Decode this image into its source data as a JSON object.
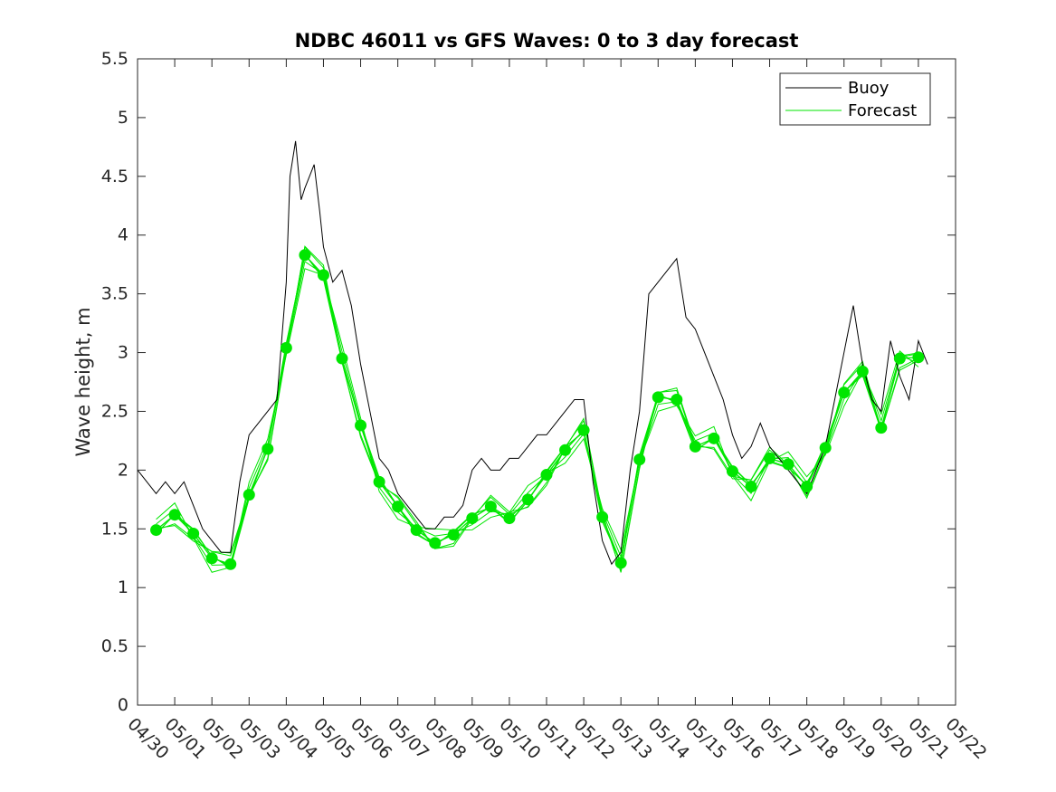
{
  "chart_data": {
    "type": "line",
    "title": "NDBC 46011 vs GFS Waves: 0 to 3 day forecast",
    "xlabel": "",
    "ylabel": "Wave height, m",
    "ylim": [
      0,
      5.5
    ],
    "xlim": [
      0,
      22
    ],
    "grid": false,
    "legend_position": "top-right",
    "y_ticks": [
      "0",
      "0.5",
      "1",
      "1.5",
      "2",
      "2.5",
      "3",
      "3.5",
      "4",
      "4.5",
      "5",
      "5.5"
    ],
    "x_ticks": [
      "04/30",
      "05/01",
      "05/02",
      "05/03",
      "05/04",
      "05/05",
      "05/06",
      "05/07",
      "05/08",
      "05/09",
      "05/10",
      "05/11",
      "05/12",
      "05/13",
      "05/14",
      "05/15",
      "05/16",
      "05/17",
      "05/18",
      "05/19",
      "05/20",
      "05/21",
      "05/22"
    ],
    "legend": [
      "Buoy",
      "Forecast"
    ],
    "colors": {
      "buoy": "#000000",
      "forecast": "#00e600"
    },
    "series": [
      {
        "name": "Buoy",
        "x": [
          0,
          0.25,
          0.5,
          0.75,
          1.0,
          1.25,
          1.5,
          1.75,
          2.0,
          2.25,
          2.5,
          2.75,
          3.0,
          3.25,
          3.5,
          3.75,
          4.0,
          4.1,
          4.25,
          4.4,
          4.5,
          4.75,
          4.9,
          5.0,
          5.25,
          5.5,
          5.75,
          6.0,
          6.25,
          6.5,
          6.75,
          7.0,
          7.25,
          7.5,
          7.75,
          8.0,
          8.25,
          8.5,
          8.75,
          9.0,
          9.25,
          9.5,
          9.75,
          10.0,
          10.25,
          10.5,
          10.75,
          11.0,
          11.25,
          11.5,
          11.75,
          12.0,
          12.25,
          12.5,
          12.75,
          13.0,
          13.25,
          13.5,
          13.75,
          14.0,
          14.25,
          14.5,
          14.75,
          15.0,
          15.25,
          15.5,
          15.75,
          16.0,
          16.25,
          16.5,
          16.75,
          17.0,
          17.25,
          17.5,
          17.75,
          18.0,
          18.25,
          18.5,
          18.75,
          19.0,
          19.25,
          19.5,
          19.75,
          20.0,
          20.25,
          20.5,
          20.75,
          21.0,
          21.25
        ],
        "values": [
          2.0,
          1.9,
          1.8,
          1.9,
          1.8,
          1.9,
          1.7,
          1.5,
          1.4,
          1.3,
          1.3,
          1.9,
          2.3,
          2.4,
          2.5,
          2.6,
          3.6,
          4.5,
          4.8,
          4.3,
          4.4,
          4.6,
          4.2,
          3.9,
          3.6,
          3.7,
          3.4,
          2.9,
          2.5,
          2.1,
          2.0,
          1.8,
          1.7,
          1.6,
          1.5,
          1.5,
          1.6,
          1.6,
          1.7,
          2.0,
          2.1,
          2.0,
          2.0,
          2.1,
          2.1,
          2.2,
          2.3,
          2.3,
          2.4,
          2.5,
          2.6,
          2.6,
          1.9,
          1.4,
          1.2,
          1.3,
          2.0,
          2.5,
          3.5,
          3.6,
          3.7,
          3.8,
          3.3,
          3.2,
          3.0,
          2.8,
          2.6,
          2.3,
          2.1,
          2.2,
          2.4,
          2.2,
          2.1,
          2.0,
          1.9,
          1.8,
          2.0,
          2.2,
          2.6,
          3.0,
          3.4,
          2.9,
          2.6,
          2.5,
          3.1,
          2.8,
          2.6,
          3.1,
          2.9
        ]
      },
      {
        "name": "Forecast",
        "x": [
          0.5,
          1.0,
          1.5,
          2.0,
          2.5,
          3.0,
          3.5,
          4.0,
          4.5,
          5.0,
          5.5,
          6.0,
          6.5,
          7.0,
          7.5,
          8.0,
          8.5,
          9.0,
          9.5,
          10.0,
          10.5,
          11.0,
          11.5,
          12.0,
          12.5,
          13.0,
          13.5,
          14.0,
          14.5,
          15.0,
          15.5,
          16.0,
          16.5,
          17.0,
          17.5,
          18.0,
          18.5,
          19.0,
          19.5,
          20.0,
          20.5,
          21.0
        ],
        "values": [
          1.49,
          1.62,
          1.46,
          1.25,
          1.2,
          1.79,
          2.18,
          3.04,
          3.83,
          3.66,
          2.95,
          2.38,
          1.9,
          1.69,
          1.49,
          1.38,
          1.45,
          1.59,
          1.69,
          1.59,
          1.75,
          1.96,
          2.17,
          2.34,
          1.6,
          1.21,
          2.09,
          2.62,
          2.6,
          2.2,
          2.27,
          1.99,
          1.86,
          2.1,
          2.05,
          1.86,
          2.19,
          2.66,
          2.84,
          2.36,
          2.95,
          2.96
        ]
      }
    ]
  }
}
